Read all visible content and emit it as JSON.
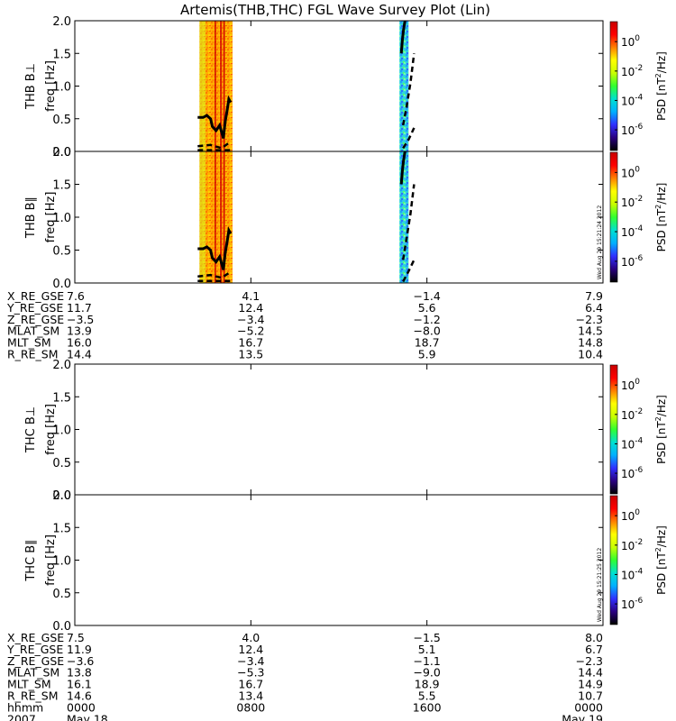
{
  "title": "Artemis(THB,THC) FGL Wave Survey Plot (Lin)",
  "chart_data": {
    "type": "heatmap",
    "title": "Artemis(THB,THC) FGL Wave Survey Plot (Lin)",
    "xlabel": "hhmm",
    "x_ticks": [
      {
        "time": "2007-05-18 00:00",
        "label": "0000"
      },
      {
        "time": "2007-05-18 08:00",
        "label": "0800"
      },
      {
        "time": "2007-05-18 16:00",
        "label": "1600"
      },
      {
        "time": "2007-05-19 00:00",
        "label": "0000"
      }
    ],
    "date_labels": {
      "year": "2007",
      "start": "May 18",
      "end": "May 19"
    },
    "y_ticks": [
      "0.0",
      "0.5",
      "1.0",
      "1.5",
      "2.0"
    ],
    "ylim": [
      0,
      2
    ],
    "colorbar": {
      "label": "PSD [nT²/Hz]",
      "label_prefix": "PSD [nT",
      "label_sup": "2",
      "label_suffix": "/Hz]",
      "tick_exponents": [
        "0",
        "-2",
        "-4",
        "-6"
      ],
      "tick_base": "10",
      "colors": [
        "#000000",
        "#2a0080",
        "#3030ff",
        "#00b0ff",
        "#00e0d0",
        "#30ff30",
        "#c8ff00",
        "#ffff00",
        "#ff8000",
        "#ff0000",
        "#c80000"
      ]
    },
    "panels": [
      {
        "probe": "THB B⊥",
        "ylabel": "freq [Hz]",
        "data_intervals": [
          {
            "start": "05:40",
            "end": "07:10",
            "level": "high"
          },
          {
            "start": "14:45",
            "end": "15:10",
            "level": "low"
          }
        ],
        "lines": [
          {
            "name": "fce_1",
            "style": "solid",
            "points": [
              [
                "05:35",
                0.52
              ],
              [
                "05:50",
                0.52
              ],
              [
                "06:00",
                0.55
              ],
              [
                "06:10",
                0.5
              ],
              [
                "06:15",
                0.38
              ],
              [
                "06:25",
                0.32
              ],
              [
                "06:35",
                0.4
              ],
              [
                "06:45",
                0.2
              ],
              [
                "06:50",
                0.45
              ],
              [
                "06:55",
                0.62
              ],
              [
                "07:00",
                0.8
              ],
              [
                "07:05",
                0.75
              ]
            ]
          },
          {
            "name": "fce_2",
            "style": "dashed",
            "points": [
              [
                "05:35",
                0.08
              ],
              [
                "06:10",
                0.1
              ],
              [
                "06:40",
                0.05
              ],
              [
                "07:05",
                0.15
              ]
            ]
          },
          {
            "name": "fce_3",
            "style": "dashed",
            "points": [
              [
                "05:35",
                0.02
              ],
              [
                "07:05",
                0.02
              ]
            ]
          },
          {
            "name": "fce_4",
            "style": "solid",
            "points": [
              [
                "14:50",
                1.5
              ],
              [
                "14:53",
                1.7
              ],
              [
                "14:56",
                1.85
              ],
              [
                "15:00",
                2.0
              ]
            ]
          },
          {
            "name": "fce_5",
            "style": "dashed",
            "points": [
              [
                "14:55",
                0.4
              ],
              [
                "15:05",
                0.7
              ],
              [
                "15:15",
                1.05
              ],
              [
                "15:25",
                1.5
              ]
            ]
          },
          {
            "name": "fce_6",
            "style": "dashed",
            "points": [
              [
                "14:55",
                0.05
              ],
              [
                "15:10",
                0.18
              ],
              [
                "15:25",
                0.36
              ]
            ]
          }
        ]
      },
      {
        "probe": "THB B∥",
        "ylabel": "freq [Hz]",
        "data_intervals": [
          {
            "start": "05:40",
            "end": "07:10",
            "level": "high"
          },
          {
            "start": "14:45",
            "end": "15:10",
            "level": "low"
          }
        ],
        "stamp": "Wed Aug 29 15:21:24 2012",
        "lines": [
          {
            "name": "fce_1",
            "style": "solid",
            "points": [
              [
                "05:35",
                0.52
              ],
              [
                "05:50",
                0.52
              ],
              [
                "06:00",
                0.55
              ],
              [
                "06:10",
                0.5
              ],
              [
                "06:15",
                0.38
              ],
              [
                "06:25",
                0.32
              ],
              [
                "06:35",
                0.4
              ],
              [
                "06:45",
                0.2
              ],
              [
                "06:50",
                0.45
              ],
              [
                "06:55",
                0.62
              ],
              [
                "07:00",
                0.8
              ],
              [
                "07:05",
                0.75
              ]
            ]
          },
          {
            "name": "fce_2",
            "style": "dashed",
            "points": [
              [
                "05:35",
                0.1
              ],
              [
                "06:10",
                0.12
              ],
              [
                "06:40",
                0.08
              ],
              [
                "07:05",
                0.17
              ]
            ]
          },
          {
            "name": "fce_3",
            "style": "dashed",
            "points": [
              [
                "05:35",
                0.03
              ],
              [
                "07:05",
                0.03
              ]
            ]
          },
          {
            "name": "fce_4",
            "style": "solid",
            "points": [
              [
                "14:50",
                1.5
              ],
              [
                "14:53",
                1.7
              ],
              [
                "14:56",
                1.85
              ],
              [
                "15:00",
                2.0
              ]
            ]
          },
          {
            "name": "fce_5",
            "style": "dashed",
            "points": [
              [
                "14:55",
                0.35
              ],
              [
                "15:05",
                0.7
              ],
              [
                "15:15",
                1.05
              ],
              [
                "15:25",
                1.5
              ]
            ]
          },
          {
            "name": "fce_6",
            "style": "dashed",
            "points": [
              [
                "14:55",
                0.02
              ],
              [
                "15:10",
                0.18
              ],
              [
                "15:25",
                0.35
              ]
            ]
          }
        ]
      },
      {
        "probe": "THC B⊥",
        "ylabel": "freq [Hz]",
        "data_intervals": [],
        "lines": []
      },
      {
        "probe": "THC B∥",
        "ylabel": "freq [Hz]",
        "data_intervals": [],
        "lines": [],
        "stamp": "Wed Aug 29 15:21:25 2012"
      }
    ]
  },
  "ephemeris_thb": {
    "rows": [
      {
        "label": "X_RE_GSE",
        "values": [
          "7.6",
          "4.1",
          "-1.4",
          "7.9"
        ]
      },
      {
        "label": "Y_RE_GSE",
        "values": [
          "11.7",
          "12.4",
          "5.6",
          "6.4"
        ]
      },
      {
        "label": "Z_RE_GSE",
        "values": [
          "-3.5",
          "-3.4",
          "-1.2",
          "-2.3"
        ]
      },
      {
        "label": "MLAT_SM",
        "values": [
          "13.9",
          "-5.2",
          "-8.0",
          "14.5"
        ]
      },
      {
        "label": "MLT_SM",
        "values": [
          "16.0",
          "16.7",
          "18.7",
          "14.8"
        ]
      },
      {
        "label": "R_RE_SM",
        "values": [
          "14.4",
          "13.5",
          "5.9",
          "10.4"
        ]
      }
    ]
  },
  "ephemeris_thc": {
    "rows": [
      {
        "label": "X_RE_GSE",
        "values": [
          "7.5",
          "4.0",
          "-1.5",
          "8.0"
        ]
      },
      {
        "label": "Y_RE_GSE",
        "values": [
          "11.9",
          "12.4",
          "5.1",
          "6.7"
        ]
      },
      {
        "label": "Z_RE_GSE",
        "values": [
          "-3.6",
          "-3.4",
          "-1.1",
          "-2.3"
        ]
      },
      {
        "label": "MLAT_SM",
        "values": [
          "13.8",
          "-5.3",
          "-9.0",
          "14.4"
        ]
      },
      {
        "label": "MLT_SM",
        "values": [
          "16.1",
          "16.7",
          "18.9",
          "14.9"
        ]
      },
      {
        "label": "R_RE_SM",
        "values": [
          "14.6",
          "13.4",
          "5.5",
          "10.7"
        ]
      },
      {
        "label": "hhmm",
        "values": [
          "0000",
          "0800",
          "1600",
          "0000"
        ]
      }
    ],
    "year": "2007",
    "start_date": "May 18",
    "end_date": "May 19"
  }
}
